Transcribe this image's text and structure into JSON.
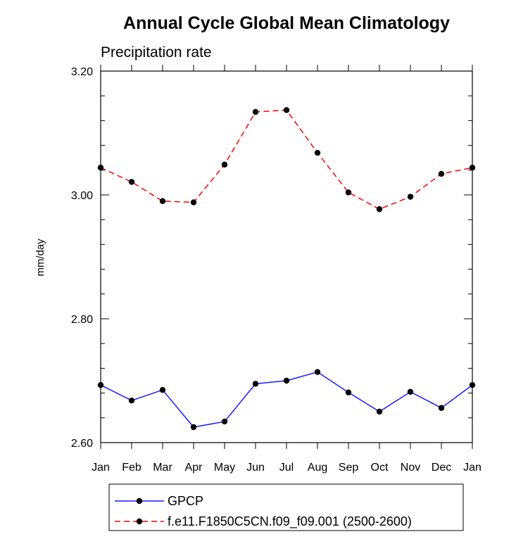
{
  "chart_data": {
    "type": "line",
    "title": "Annual Cycle Global Mean Climatology",
    "subtitle": "Precipitation rate",
    "xlabel": "",
    "ylabel": "mm/day",
    "categories": [
      "Jan",
      "Feb",
      "Mar",
      "Apr",
      "May",
      "Jun",
      "Jul",
      "Aug",
      "Sep",
      "Oct",
      "Nov",
      "Dec",
      "Jan"
    ],
    "ylim": [
      2.6,
      3.2
    ],
    "yticks": [
      2.6,
      2.8,
      3.0,
      3.2
    ],
    "ytick_labels": [
      "2.60",
      "2.80",
      "3.00",
      "3.20"
    ],
    "grid": false,
    "legend_position": "bottom",
    "series": [
      {
        "name": "GPCP",
        "color": "#1a1aff",
        "line_style": "solid",
        "marker": "filled-circle",
        "values": [
          2.693,
          2.668,
          2.685,
          2.625,
          2.634,
          2.695,
          2.7,
          2.714,
          2.681,
          2.65,
          2.682,
          2.656,
          2.693
        ]
      },
      {
        "name": "f.e11.F1850C5CN.f09_f09.001 (2500-2600)",
        "color": "#ff0000",
        "line_style": "dashed",
        "marker": "filled-circle",
        "values": [
          3.044,
          3.021,
          2.99,
          2.988,
          3.049,
          3.134,
          3.137,
          3.068,
          3.004,
          2.977,
          2.997,
          3.034,
          3.044
        ]
      }
    ]
  }
}
